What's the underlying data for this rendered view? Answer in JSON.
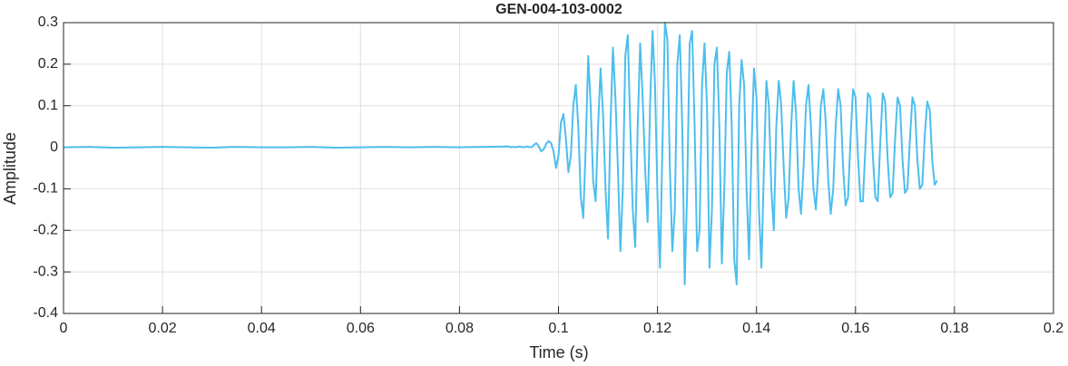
{
  "chart_data": {
    "type": "line",
    "title": "GEN-004-103-0002",
    "xlabel": "Time (s)",
    "ylabel": "Amplitude",
    "color": "#4dbeee",
    "grid": true,
    "xlim": [
      0,
      0.2
    ],
    "ylim": [
      -0.4,
      0.3
    ],
    "xticks": [
      0,
      0.02,
      0.04,
      0.06,
      0.08,
      0.1,
      0.12,
      0.14,
      0.16,
      0.18,
      0.2
    ],
    "yticks": [
      -0.4,
      -0.3,
      -0.2,
      -0.1,
      0,
      0.1,
      0.2,
      0.3
    ],
    "x": [
      0,
      0.005,
      0.01,
      0.015,
      0.02,
      0.025,
      0.03,
      0.035,
      0.04,
      0.045,
      0.05,
      0.055,
      0.06,
      0.065,
      0.07,
      0.075,
      0.08,
      0.085,
      0.09,
      0.0905,
      0.091,
      0.0915,
      0.092,
      0.0925,
      0.093,
      0.0935,
      0.094,
      0.0945,
      0.095,
      0.0955,
      0.096,
      0.0965,
      0.097,
      0.0975,
      0.098,
      0.0985,
      0.099,
      0.0995,
      0.1,
      0.1005,
      0.101,
      0.1015,
      0.102,
      0.1025,
      0.103,
      0.1035,
      0.104,
      0.1045,
      0.105,
      0.1055,
      0.106,
      0.1065,
      0.107,
      0.1075,
      0.108,
      0.1085,
      0.109,
      0.1095,
      0.11,
      0.1105,
      0.111,
      0.1115,
      0.112,
      0.1125,
      0.113,
      0.1135,
      0.114,
      0.1145,
      0.115,
      0.1155,
      0.116,
      0.1165,
      0.117,
      0.1175,
      0.118,
      0.1185,
      0.119,
      0.1195,
      0.12,
      0.1205,
      0.121,
      0.1215,
      0.122,
      0.1225,
      0.123,
      0.1235,
      0.124,
      0.1245,
      0.125,
      0.1255,
      0.126,
      0.1265,
      0.127,
      0.1275,
      0.128,
      0.1285,
      0.129,
      0.1295,
      0.13,
      0.1305,
      0.131,
      0.1315,
      0.132,
      0.1325,
      0.133,
      0.1335,
      0.134,
      0.1345,
      0.135,
      0.1355,
      0.136,
      0.1365,
      0.137,
      0.1375,
      0.138,
      0.1385,
      0.139,
      0.1395,
      0.14,
      0.1405,
      0.141,
      0.1415,
      0.142,
      0.1425,
      0.143,
      0.1435,
      0.144,
      0.1445,
      0.145,
      0.1455,
      0.146,
      0.1465,
      0.147,
      0.1475,
      0.148,
      0.1485,
      0.149,
      0.1495,
      0.15,
      0.1505,
      0.151,
      0.1515,
      0.152,
      0.1525,
      0.153,
      0.1535,
      0.154,
      0.1545,
      0.155,
      0.1555,
      0.156,
      0.1565,
      0.157,
      0.1575,
      0.158,
      0.1585,
      0.159,
      0.1595,
      0.16,
      0.1605,
      0.161,
      0.1615,
      0.162,
      0.1625,
      0.163,
      0.1635,
      0.164,
      0.1645,
      0.165,
      0.1655,
      0.166,
      0.1665,
      0.167,
      0.1675,
      0.168,
      0.1685,
      0.169,
      0.1695,
      0.17,
      0.1705,
      0.171,
      0.1715,
      0.172,
      0.1725,
      0.173,
      0.1735,
      0.174,
      0.1745,
      0.175,
      0.1755,
      0.176,
      0.1765
    ],
    "values": [
      0,
      0.001,
      -0.001,
      0,
      0.001,
      0,
      -0.001,
      0.001,
      0,
      0,
      0.001,
      -0.001,
      0,
      0.001,
      0,
      0.001,
      0,
      0.001,
      0.002,
      0,
      0.001,
      0,
      0.002,
      0.001,
      0,
      0.002,
      0.001,
      0,
      0.005,
      0.01,
      0.003,
      -0.01,
      -0.005,
      0.008,
      0.015,
      0.01,
      -0.01,
      -0.05,
      -0.02,
      0.06,
      0.08,
      0.02,
      -0.06,
      -0.02,
      0.1,
      0.15,
      0.05,
      -0.12,
      -0.17,
      0,
      0.22,
      0.1,
      -0.08,
      -0.13,
      0.05,
      0.19,
      0.08,
      -0.1,
      -0.22,
      0.05,
      0.24,
      0.12,
      -0.05,
      -0.25,
      -0.1,
      0.22,
      0.27,
      0.05,
      -0.15,
      -0.24,
      0.05,
      0.25,
      0.12,
      -0.05,
      -0.18,
      0.1,
      0.28,
      0.15,
      -0.12,
      -0.29,
      0,
      0.3,
      0.26,
      -0.05,
      -0.25,
      -0.15,
      0.2,
      0.27,
      0.05,
      -0.33,
      -0.1,
      0.25,
      0.28,
      0.05,
      -0.25,
      -0.2,
      0.15,
      0.25,
      0.1,
      -0.29,
      -0.15,
      0.2,
      0.24,
      0.05,
      -0.28,
      -0.1,
      0.18,
      0.23,
      0.05,
      -0.27,
      -0.33,
      0.1,
      0.21,
      0.15,
      -0.1,
      -0.27,
      0,
      0.19,
      0.12,
      -0.15,
      -0.29,
      -0.05,
      0.16,
      0.1,
      -0.1,
      -0.2,
      0.05,
      0.16,
      0.1,
      -0.05,
      -0.17,
      -0.12,
      0.05,
      0.16,
      0.08,
      -0.1,
      -0.16,
      -0.05,
      0.1,
      0.15,
      0.05,
      -0.1,
      -0.15,
      -0.05,
      0.1,
      0.14,
      0.06,
      -0.08,
      -0.16,
      -0.1,
      0.05,
      0.14,
      0.1,
      -0.05,
      -0.14,
      -0.12,
      0.02,
      0.14,
      0.12,
      -0.02,
      -0.13,
      -0.13,
      0,
      0.13,
      0.12,
      -0.02,
      -0.12,
      -0.13,
      0.01,
      0.13,
      0.11,
      -0.03,
      -0.12,
      -0.11,
      0.02,
      0.12,
      0.1,
      -0.03,
      -0.11,
      -0.1,
      0.02,
      0.12,
      0.1,
      -0.03,
      -0.1,
      -0.09,
      0.03,
      0.11,
      0.09,
      -0.03,
      -0.09,
      -0.08
    ]
  }
}
